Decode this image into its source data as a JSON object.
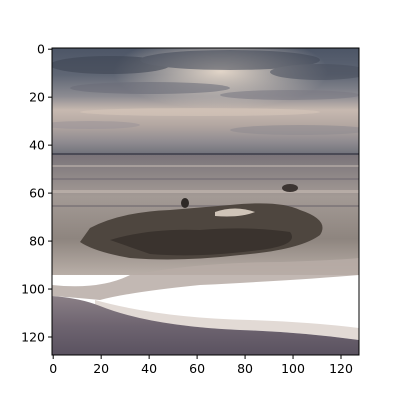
{
  "image": {
    "description": "beach-sea-sunset-photo",
    "scene": [
      "cloudy-sky",
      "horizon",
      "sea",
      "wet-rocks",
      "wave-foam",
      "sand"
    ]
  },
  "axes": {
    "x_ticks": [
      0,
      20,
      40,
      60,
      80,
      100,
      120
    ],
    "y_ticks": [
      0,
      20,
      40,
      60,
      80,
      100,
      120
    ],
    "x_range": [
      -0.5,
      127.5
    ],
    "y_range": [
      127.5,
      -0.5
    ]
  }
}
